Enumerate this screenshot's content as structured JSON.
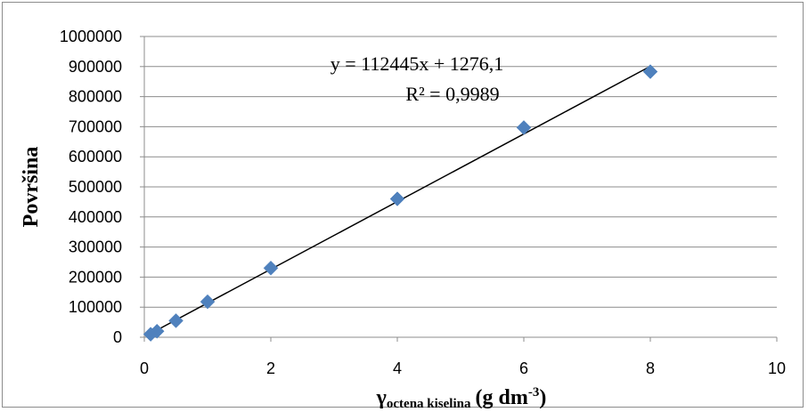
{
  "chart_data": {
    "type": "scatter",
    "title": "",
    "xlabel_main": "γ",
    "xlabel_sub": "octena kiselina",
    "xlabel_unit": "(g dm",
    "xlabel_exp": "-3",
    "xlabel_close": ")",
    "ylabel": "Površina",
    "xlim": [
      0,
      10
    ],
    "ylim": [
      0,
      1000000
    ],
    "x_ticks": [
      "0",
      "2",
      "4",
      "6",
      "8",
      "10"
    ],
    "y_ticks": [
      "0",
      "100000",
      "200000",
      "300000",
      "400000",
      "500000",
      "600000",
      "700000",
      "800000",
      "900000",
      "1000000"
    ],
    "grid": true,
    "legend": "none",
    "marker_color": "#4f81bd",
    "line_color": "#000000",
    "series": [
      {
        "x": [
          0.1,
          0.2,
          0.5,
          1,
          2,
          4,
          6,
          8
        ],
        "y": [
          10000,
          20000,
          55000,
          118000,
          230000,
          460000,
          697000,
          883000
        ]
      }
    ],
    "trendline": {
      "slope": 112445,
      "intercept": 1276.1,
      "x_range": [
        0.1,
        8
      ]
    },
    "equation": "y = 112445x + 1276,1",
    "r_squared": "R² = 0,9989"
  }
}
